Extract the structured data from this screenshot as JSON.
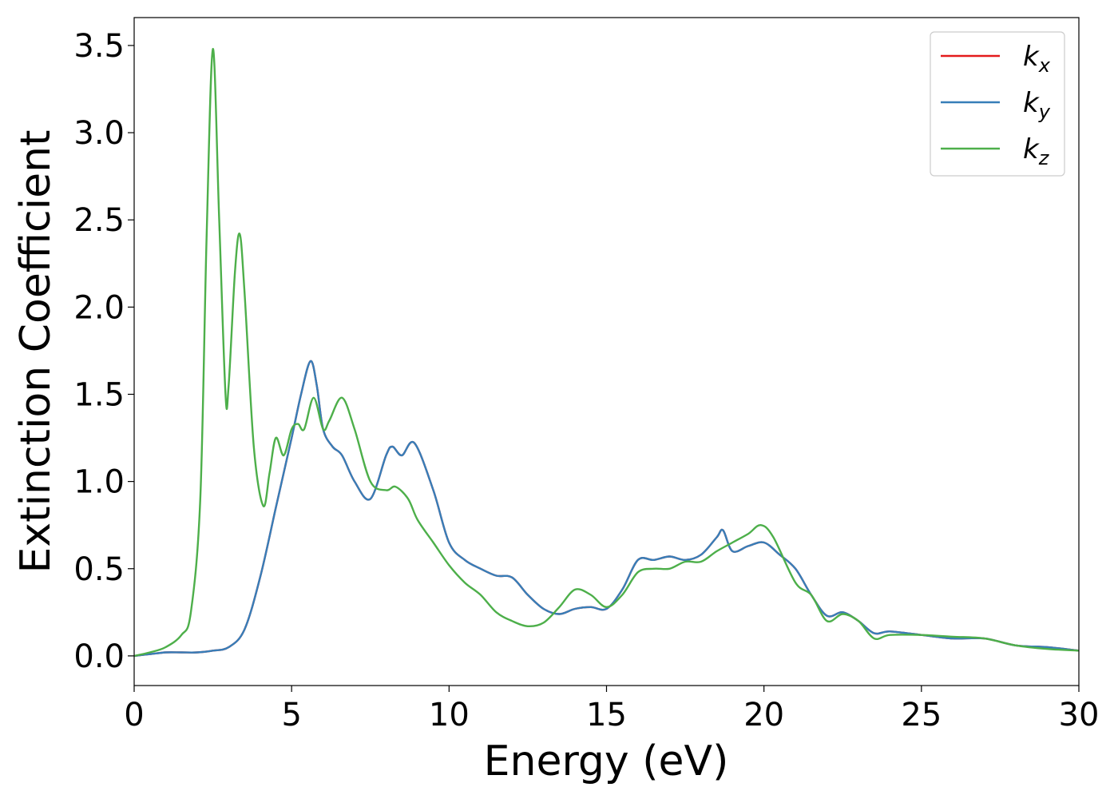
{
  "chart_data": {
    "type": "line",
    "xlabel": "Energy (eV)",
    "ylabel": "Extinction Coefficient",
    "xlim": [
      0,
      30
    ],
    "ylim": [
      -0.17,
      3.66
    ],
    "xticks": [
      0,
      5,
      10,
      15,
      20,
      25,
      30
    ],
    "xtick_labels": [
      "0",
      "5",
      "10",
      "15",
      "20",
      "25",
      "30"
    ],
    "yticks": [
      0.0,
      0.5,
      1.0,
      1.5,
      2.0,
      2.5,
      3.0,
      3.5
    ],
    "ytick_labels": [
      "0.0",
      "0.5",
      "1.0",
      "1.5",
      "2.0",
      "2.5",
      "3.0",
      "3.5"
    ],
    "grid": false,
    "legend": {
      "placement": "top-right",
      "entries": [
        {
          "base": "k",
          "sub": "x",
          "color": "#e41a1c"
        },
        {
          "base": "k",
          "sub": "y",
          "color": "#377eb8"
        },
        {
          "base": "k",
          "sub": "z",
          "color": "#4daf4a"
        }
      ]
    },
    "series": [
      {
        "color": "#e41a1c",
        "x": [
          0,
          0.5,
          1,
          1.5,
          2,
          2.5,
          3,
          3.5,
          4,
          4.5,
          5,
          5.3,
          5.6,
          5.8,
          6,
          6.3,
          6.6,
          7,
          7.5,
          8,
          8.2,
          8.5,
          8.9,
          9.5,
          10,
          10.5,
          11,
          11.5,
          12,
          12.5,
          13,
          13.5,
          14,
          14.5,
          15,
          15.5,
          16,
          16.5,
          17,
          17.5,
          18,
          18.5,
          18.7,
          19,
          19.5,
          20,
          20.5,
          21,
          21.5,
          22,
          22.5,
          23,
          23.5,
          24,
          25,
          26,
          27,
          28,
          29,
          30
        ],
        "y": [
          0.0,
          0.01,
          0.02,
          0.02,
          0.02,
          0.03,
          0.05,
          0.15,
          0.45,
          0.85,
          1.25,
          1.5,
          1.69,
          1.55,
          1.3,
          1.2,
          1.15,
          1.0,
          0.9,
          1.15,
          1.2,
          1.15,
          1.22,
          0.95,
          0.65,
          0.55,
          0.5,
          0.46,
          0.45,
          0.35,
          0.27,
          0.24,
          0.27,
          0.28,
          0.27,
          0.38,
          0.55,
          0.55,
          0.57,
          0.55,
          0.58,
          0.68,
          0.72,
          0.6,
          0.63,
          0.65,
          0.58,
          0.5,
          0.35,
          0.23,
          0.25,
          0.2,
          0.13,
          0.14,
          0.12,
          0.1,
          0.1,
          0.06,
          0.05,
          0.03
        ]
      },
      {
        "color": "#377eb8",
        "x": [
          0,
          0.5,
          1,
          1.5,
          2,
          2.5,
          3,
          3.5,
          4,
          4.5,
          5,
          5.3,
          5.6,
          5.8,
          6,
          6.3,
          6.6,
          7,
          7.5,
          8,
          8.2,
          8.5,
          8.9,
          9.5,
          10,
          10.5,
          11,
          11.5,
          12,
          12.5,
          13,
          13.5,
          14,
          14.5,
          15,
          15.5,
          16,
          16.5,
          17,
          17.5,
          18,
          18.5,
          18.7,
          19,
          19.5,
          20,
          20.5,
          21,
          21.5,
          22,
          22.5,
          23,
          23.5,
          24,
          25,
          26,
          27,
          28,
          29,
          30
        ],
        "y": [
          0.0,
          0.01,
          0.02,
          0.02,
          0.02,
          0.03,
          0.05,
          0.15,
          0.45,
          0.85,
          1.25,
          1.5,
          1.69,
          1.55,
          1.3,
          1.2,
          1.15,
          1.0,
          0.9,
          1.15,
          1.2,
          1.15,
          1.22,
          0.95,
          0.65,
          0.55,
          0.5,
          0.46,
          0.45,
          0.35,
          0.27,
          0.24,
          0.27,
          0.28,
          0.27,
          0.38,
          0.55,
          0.55,
          0.57,
          0.55,
          0.58,
          0.68,
          0.72,
          0.6,
          0.63,
          0.65,
          0.58,
          0.5,
          0.35,
          0.23,
          0.25,
          0.2,
          0.13,
          0.14,
          0.12,
          0.1,
          0.1,
          0.06,
          0.05,
          0.03
        ]
      },
      {
        "color": "#4daf4a",
        "x": [
          0,
          0.5,
          1,
          1.5,
          1.8,
          2.1,
          2.3,
          2.5,
          2.7,
          2.9,
          3.0,
          3.2,
          3.35,
          3.5,
          3.8,
          4.1,
          4.3,
          4.5,
          4.75,
          5.0,
          5.2,
          5.4,
          5.7,
          6.0,
          6.2,
          6.6,
          7.0,
          7.5,
          8.0,
          8.3,
          8.7,
          9.0,
          9.5,
          10,
          10.5,
          11,
          11.5,
          12,
          12.5,
          13,
          13.5,
          14,
          14.5,
          15,
          15.5,
          16,
          16.5,
          17,
          17.5,
          18,
          18.5,
          19,
          19.5,
          19.9,
          20.3,
          21,
          21.5,
          22,
          22.5,
          23,
          23.5,
          24,
          25,
          26,
          27,
          28,
          29,
          30
        ],
        "y": [
          0.0,
          0.02,
          0.05,
          0.12,
          0.25,
          0.9,
          2.4,
          3.48,
          2.5,
          1.5,
          1.55,
          2.2,
          2.42,
          2.1,
          1.2,
          0.86,
          1.05,
          1.25,
          1.15,
          1.3,
          1.33,
          1.3,
          1.48,
          1.3,
          1.35,
          1.48,
          1.3,
          1.0,
          0.95,
          0.97,
          0.9,
          0.78,
          0.65,
          0.52,
          0.42,
          0.35,
          0.25,
          0.2,
          0.17,
          0.19,
          0.28,
          0.38,
          0.35,
          0.28,
          0.35,
          0.48,
          0.5,
          0.5,
          0.54,
          0.54,
          0.6,
          0.65,
          0.7,
          0.75,
          0.68,
          0.42,
          0.35,
          0.2,
          0.24,
          0.2,
          0.1,
          0.12,
          0.12,
          0.11,
          0.1,
          0.06,
          0.04,
          0.03
        ]
      }
    ]
  }
}
